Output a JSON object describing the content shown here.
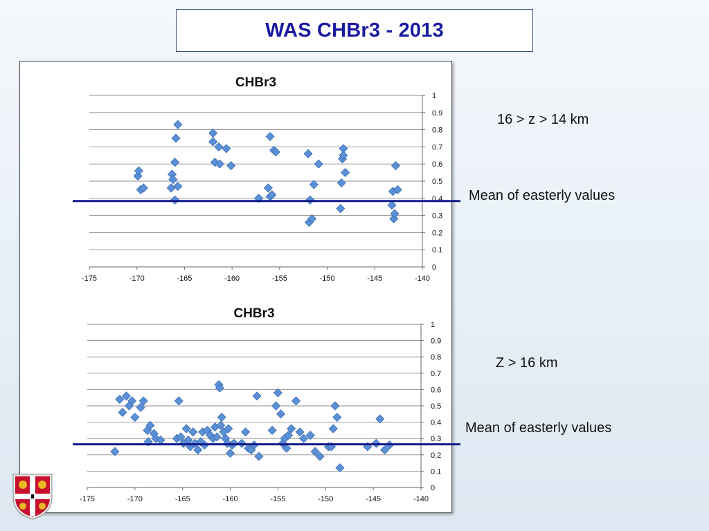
{
  "slide": {
    "title": "WAS CHBr3 - 2013"
  },
  "annotations": {
    "panel1_altitude": "16 > z > 14 km",
    "panel1_mean_label": "Mean of easterly values",
    "panel2_altitude": "Z > 16 km",
    "panel2_mean_label": "Mean of easterly values"
  },
  "colors": {
    "marker_fill": "#5b8fd6",
    "marker_stroke": "#3a6cb3",
    "mean_line": "#121a8c",
    "title": "#1a1aa0"
  },
  "logo": {
    "icon": "university-crest-icon"
  },
  "chart_data": [
    {
      "type": "scatter",
      "title": "CHBr3",
      "xlim": [
        -175,
        -140
      ],
      "ylim": [
        0,
        1
      ],
      "x_ticks": [
        -175,
        -170,
        -165,
        -160,
        -155,
        -150,
        -145,
        -140
      ],
      "y_ticks": [
        0,
        0.1,
        0.2,
        0.3,
        0.4,
        0.5,
        0.6,
        0.7,
        0.8,
        0.9,
        1
      ],
      "y_axis_side": "right",
      "grid": true,
      "mean_line": 0.38,
      "points": [
        [
          -169.9,
          0.53
        ],
        [
          -169.8,
          0.56
        ],
        [
          -169.6,
          0.45
        ],
        [
          -169.3,
          0.46
        ],
        [
          -166.3,
          0.54
        ],
        [
          -166.2,
          0.51
        ],
        [
          -166.4,
          0.46
        ],
        [
          -166.0,
          0.61
        ],
        [
          -166.0,
          0.39
        ],
        [
          -165.9,
          0.75
        ],
        [
          -165.7,
          0.83
        ],
        [
          -165.7,
          0.47
        ],
        [
          -162.0,
          0.78
        ],
        [
          -162.0,
          0.73
        ],
        [
          -161.8,
          0.61
        ],
        [
          -161.4,
          0.7
        ],
        [
          -161.3,
          0.6
        ],
        [
          -160.6,
          0.69
        ],
        [
          -160.1,
          0.59
        ],
        [
          -157.2,
          0.4
        ],
        [
          -156.2,
          0.46
        ],
        [
          -156.0,
          0.76
        ],
        [
          -156.0,
          0.41
        ],
        [
          -155.8,
          0.42
        ],
        [
          -155.6,
          0.68
        ],
        [
          -155.4,
          0.67
        ],
        [
          -152.0,
          0.66
        ],
        [
          -151.9,
          0.26
        ],
        [
          -151.8,
          0.39
        ],
        [
          -151.6,
          0.28
        ],
        [
          -151.4,
          0.48
        ],
        [
          -150.9,
          0.6
        ],
        [
          -148.6,
          0.34
        ],
        [
          -148.5,
          0.49
        ],
        [
          -148.4,
          0.63
        ],
        [
          -148.3,
          0.69
        ],
        [
          -148.3,
          0.65
        ],
        [
          -148.1,
          0.55
        ],
        [
          -143.2,
          0.36
        ],
        [
          -143.1,
          0.44
        ],
        [
          -143.0,
          0.28
        ],
        [
          -142.9,
          0.31
        ],
        [
          -142.8,
          0.59
        ],
        [
          -142.6,
          0.45
        ]
      ]
    },
    {
      "type": "scatter",
      "title": "CHBr3",
      "xlim": [
        -175,
        -140
      ],
      "ylim": [
        0,
        1
      ],
      "x_ticks": [
        -175,
        -170,
        -165,
        -160,
        -155,
        -150,
        -145,
        -140
      ],
      "y_ticks": [
        0,
        0.1,
        0.2,
        0.3,
        0.4,
        0.5,
        0.6,
        0.7,
        0.8,
        0.9,
        1
      ],
      "y_axis_side": "right",
      "grid": true,
      "mean_line": 0.26,
      "points": [
        [
          -172.1,
          0.22
        ],
        [
          -171.6,
          0.54
        ],
        [
          -171.3,
          0.46
        ],
        [
          -170.9,
          0.56
        ],
        [
          -170.6,
          0.5
        ],
        [
          -170.3,
          0.53
        ],
        [
          -170.0,
          0.43
        ],
        [
          -169.4,
          0.49
        ],
        [
          -169.1,
          0.53
        ],
        [
          -168.7,
          0.35
        ],
        [
          -168.6,
          0.28
        ],
        [
          -168.4,
          0.38
        ],
        [
          -168.0,
          0.33
        ],
        [
          -167.8,
          0.3
        ],
        [
          -167.3,
          0.29
        ],
        [
          -165.6,
          0.3
        ],
        [
          -165.4,
          0.53
        ],
        [
          -165.2,
          0.31
        ],
        [
          -164.9,
          0.27
        ],
        [
          -164.6,
          0.36
        ],
        [
          -164.4,
          0.29
        ],
        [
          -164.2,
          0.25
        ],
        [
          -163.9,
          0.34
        ],
        [
          -163.7,
          0.27
        ],
        [
          -163.4,
          0.23
        ],
        [
          -163.1,
          0.28
        ],
        [
          -162.9,
          0.34
        ],
        [
          -162.7,
          0.26
        ],
        [
          -162.4,
          0.35
        ],
        [
          -162.1,
          0.32
        ],
        [
          -161.8,
          0.3
        ],
        [
          -161.6,
          0.37
        ],
        [
          -161.4,
          0.31
        ],
        [
          -161.2,
          0.63
        ],
        [
          -161.1,
          0.61
        ],
        [
          -161.0,
          0.38
        ],
        [
          -160.9,
          0.43
        ],
        [
          -160.7,
          0.34
        ],
        [
          -160.5,
          0.3
        ],
        [
          -160.3,
          0.27
        ],
        [
          -160.2,
          0.36
        ],
        [
          -160.0,
          0.21
        ],
        [
          -159.8,
          0.26
        ],
        [
          -159.6,
          0.27
        ],
        [
          -158.8,
          0.27
        ],
        [
          -158.4,
          0.34
        ],
        [
          -158.1,
          0.24
        ],
        [
          -157.8,
          0.23
        ],
        [
          -157.5,
          0.26
        ],
        [
          -157.2,
          0.56
        ],
        [
          -157.0,
          0.19
        ],
        [
          -155.6,
          0.35
        ],
        [
          -155.2,
          0.5
        ],
        [
          -155.0,
          0.58
        ],
        [
          -154.7,
          0.45
        ],
        [
          -154.5,
          0.27
        ],
        [
          -154.3,
          0.3
        ],
        [
          -154.1,
          0.24
        ],
        [
          -153.9,
          0.32
        ],
        [
          -153.6,
          0.36
        ],
        [
          -153.1,
          0.53
        ],
        [
          -152.7,
          0.34
        ],
        [
          -152.3,
          0.3
        ],
        [
          -151.6,
          0.32
        ],
        [
          -151.1,
          0.22
        ],
        [
          -150.6,
          0.19
        ],
        [
          -149.7,
          0.25
        ],
        [
          -149.4,
          0.25
        ],
        [
          -149.2,
          0.36
        ],
        [
          -149.0,
          0.5
        ],
        [
          -148.8,
          0.43
        ],
        [
          -148.5,
          0.12
        ],
        [
          -145.6,
          0.25
        ],
        [
          -144.7,
          0.27
        ],
        [
          -144.3,
          0.42
        ],
        [
          -143.8,
          0.23
        ],
        [
          -143.3,
          0.26
        ]
      ]
    }
  ]
}
